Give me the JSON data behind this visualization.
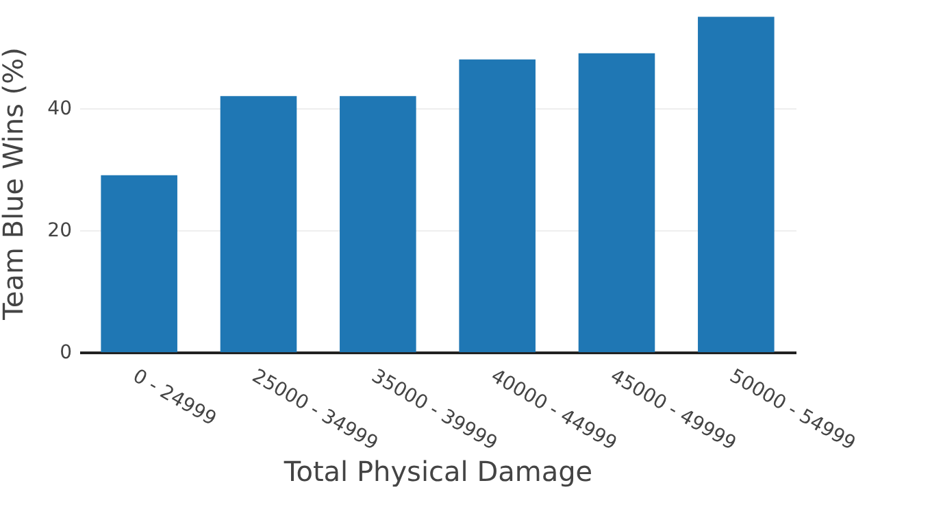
{
  "chart_data": {
    "type": "bar",
    "xlabel": "Total Physical Damage",
    "ylabel": "Team Blue Wins (%)",
    "categories": [
      "0 - 24999",
      "25000 - 34999",
      "35000 - 39999",
      "40000 - 44999",
      "45000 - 49999",
      "50000 - 54999"
    ],
    "values": [
      29,
      42,
      42,
      48,
      49,
      55
    ],
    "color": "#1f77b4",
    "ylim": [
      0,
      55.5
    ],
    "yticks": [
      0,
      20,
      40
    ],
    "grid": "y"
  }
}
